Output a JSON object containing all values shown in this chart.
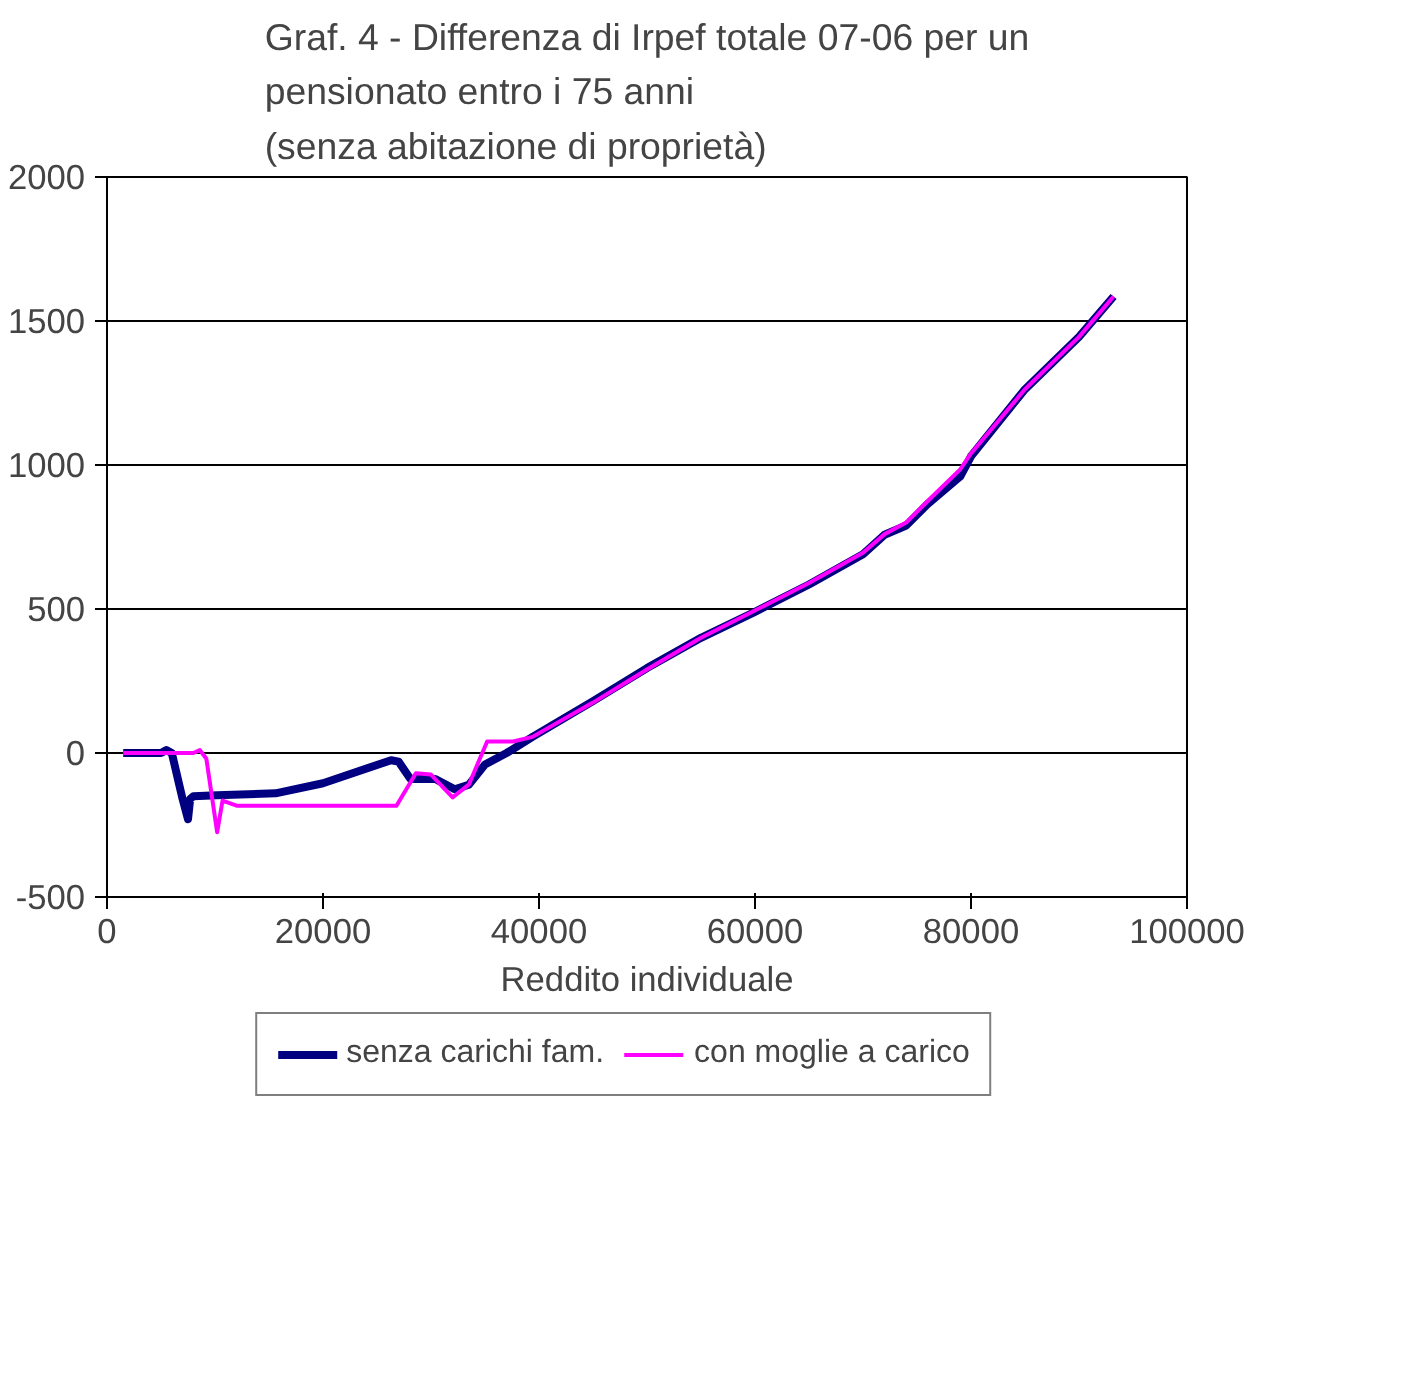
{
  "chart_data": {
    "type": "line",
    "title": "Graf. 4 - Differenza di Irpef totale 07-06 per un\npensionato entro i 75 anni\n(senza abitazione di proprietà)",
    "xlabel": "Reddito individuale",
    "xlim": [
      0,
      100000
    ],
    "xticks": [
      0,
      20000,
      40000,
      60000,
      80000,
      100000
    ],
    "ylim": [
      -500,
      2000
    ],
    "yticks": [
      -500,
      0,
      500,
      1000,
      1500,
      2000
    ],
    "grid": "y",
    "legend": "bottom",
    "marker": "none",
    "line_style": "solid",
    "series": [
      {
        "name": "senza carichi fam.",
        "color": "#000080",
        "x": [
          1500,
          5000,
          5500,
          6000,
          7000,
          7500,
          7700,
          8000,
          10200,
          15600,
          20000,
          26300,
          27000,
          28100,
          30400,
          32200,
          33500,
          35000,
          37000,
          39400,
          45000,
          50000,
          55000,
          60000,
          65000,
          70000,
          72000,
          74000,
          76000,
          79000,
          80000,
          85000,
          90000,
          93200
        ],
        "values": [
          0,
          0,
          10,
          0,
          -160,
          -230,
          -160,
          -150,
          -147,
          -140,
          -105,
          -25,
          -30,
          -90,
          -90,
          -126,
          -110,
          -40,
          0,
          56,
          180,
          295,
          400,
          490,
          585,
          690,
          758,
          790,
          865,
          960,
          1030,
          1263,
          1445,
          1585
        ]
      },
      {
        "name": "con moglie a carico",
        "color": "#ff00ff",
        "x": [
          1500,
          8000,
          8600,
          9200,
          10200,
          10700,
          12000,
          26800,
          28600,
          30000,
          32000,
          33500,
          35200,
          37600,
          39400,
          45000,
          50000,
          55000,
          60000,
          65000,
          70000,
          72000,
          74000,
          76000,
          79000,
          80000,
          85000,
          90000,
          93200
        ],
        "values": [
          0,
          0,
          10,
          -20,
          -275,
          -165,
          -183,
          -183,
          -70,
          -75,
          -154,
          -110,
          40,
          40,
          56,
          175,
          290,
          400,
          495,
          590,
          695,
          760,
          800,
          875,
          985,
          1040,
          1263,
          1445,
          1585
        ]
      }
    ]
  }
}
